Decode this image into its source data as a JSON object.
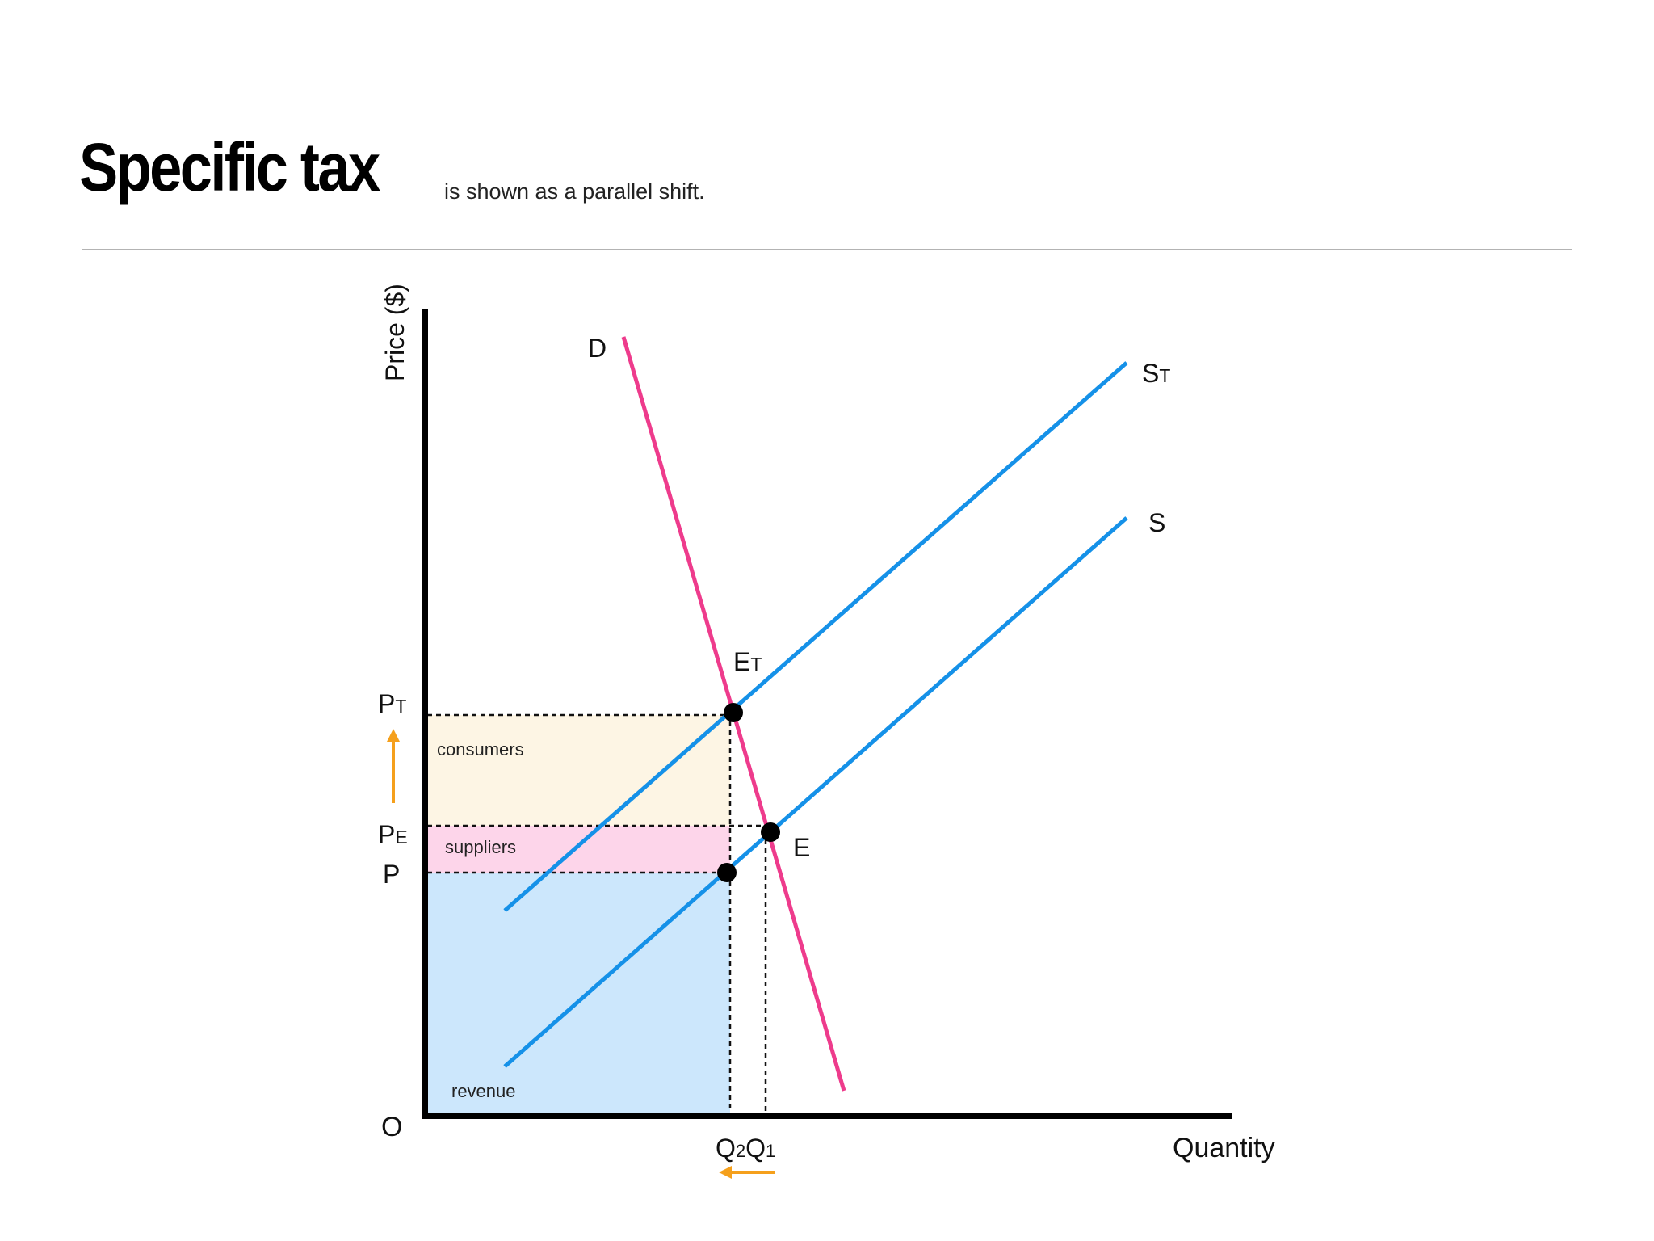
{
  "header": {
    "title": "Specific tax",
    "subtitle": "is shown as a parallel shift."
  },
  "axes": {
    "y_label": "Price ($)",
    "x_label": "Quantity",
    "origin": "O"
  },
  "curves": {
    "demand": {
      "label": "D",
      "color": "#ee3b8c"
    },
    "supply": {
      "label": "S",
      "color": "#1591e8"
    },
    "supply_taxed": {
      "label": "S",
      "subscript": "T",
      "color": "#1591e8"
    }
  },
  "points": {
    "taxed_equilibrium": {
      "label": "E",
      "subscript": "T"
    },
    "equilibrium": {
      "label": "E"
    }
  },
  "price_labels": {
    "pt": {
      "label": "P",
      "subscript": "T"
    },
    "pe": {
      "label": "P",
      "subscript": "E"
    },
    "p": {
      "label": "P"
    }
  },
  "quantity_labels": {
    "q2": {
      "label": "Q",
      "subscript": "2"
    },
    "q1": {
      "label": "Q",
      "subscript": "1"
    }
  },
  "areas": {
    "consumers": {
      "label": "consumers",
      "color": "#fdf5e4"
    },
    "suppliers": {
      "label": "suppliers",
      "color": "#fdd5ea"
    },
    "revenue": {
      "label": "revenue",
      "color": "#cce7fc"
    }
  },
  "arrows": {
    "price_arrow_color": "#f5a01c",
    "quantity_arrow_color": "#f5a01c"
  }
}
